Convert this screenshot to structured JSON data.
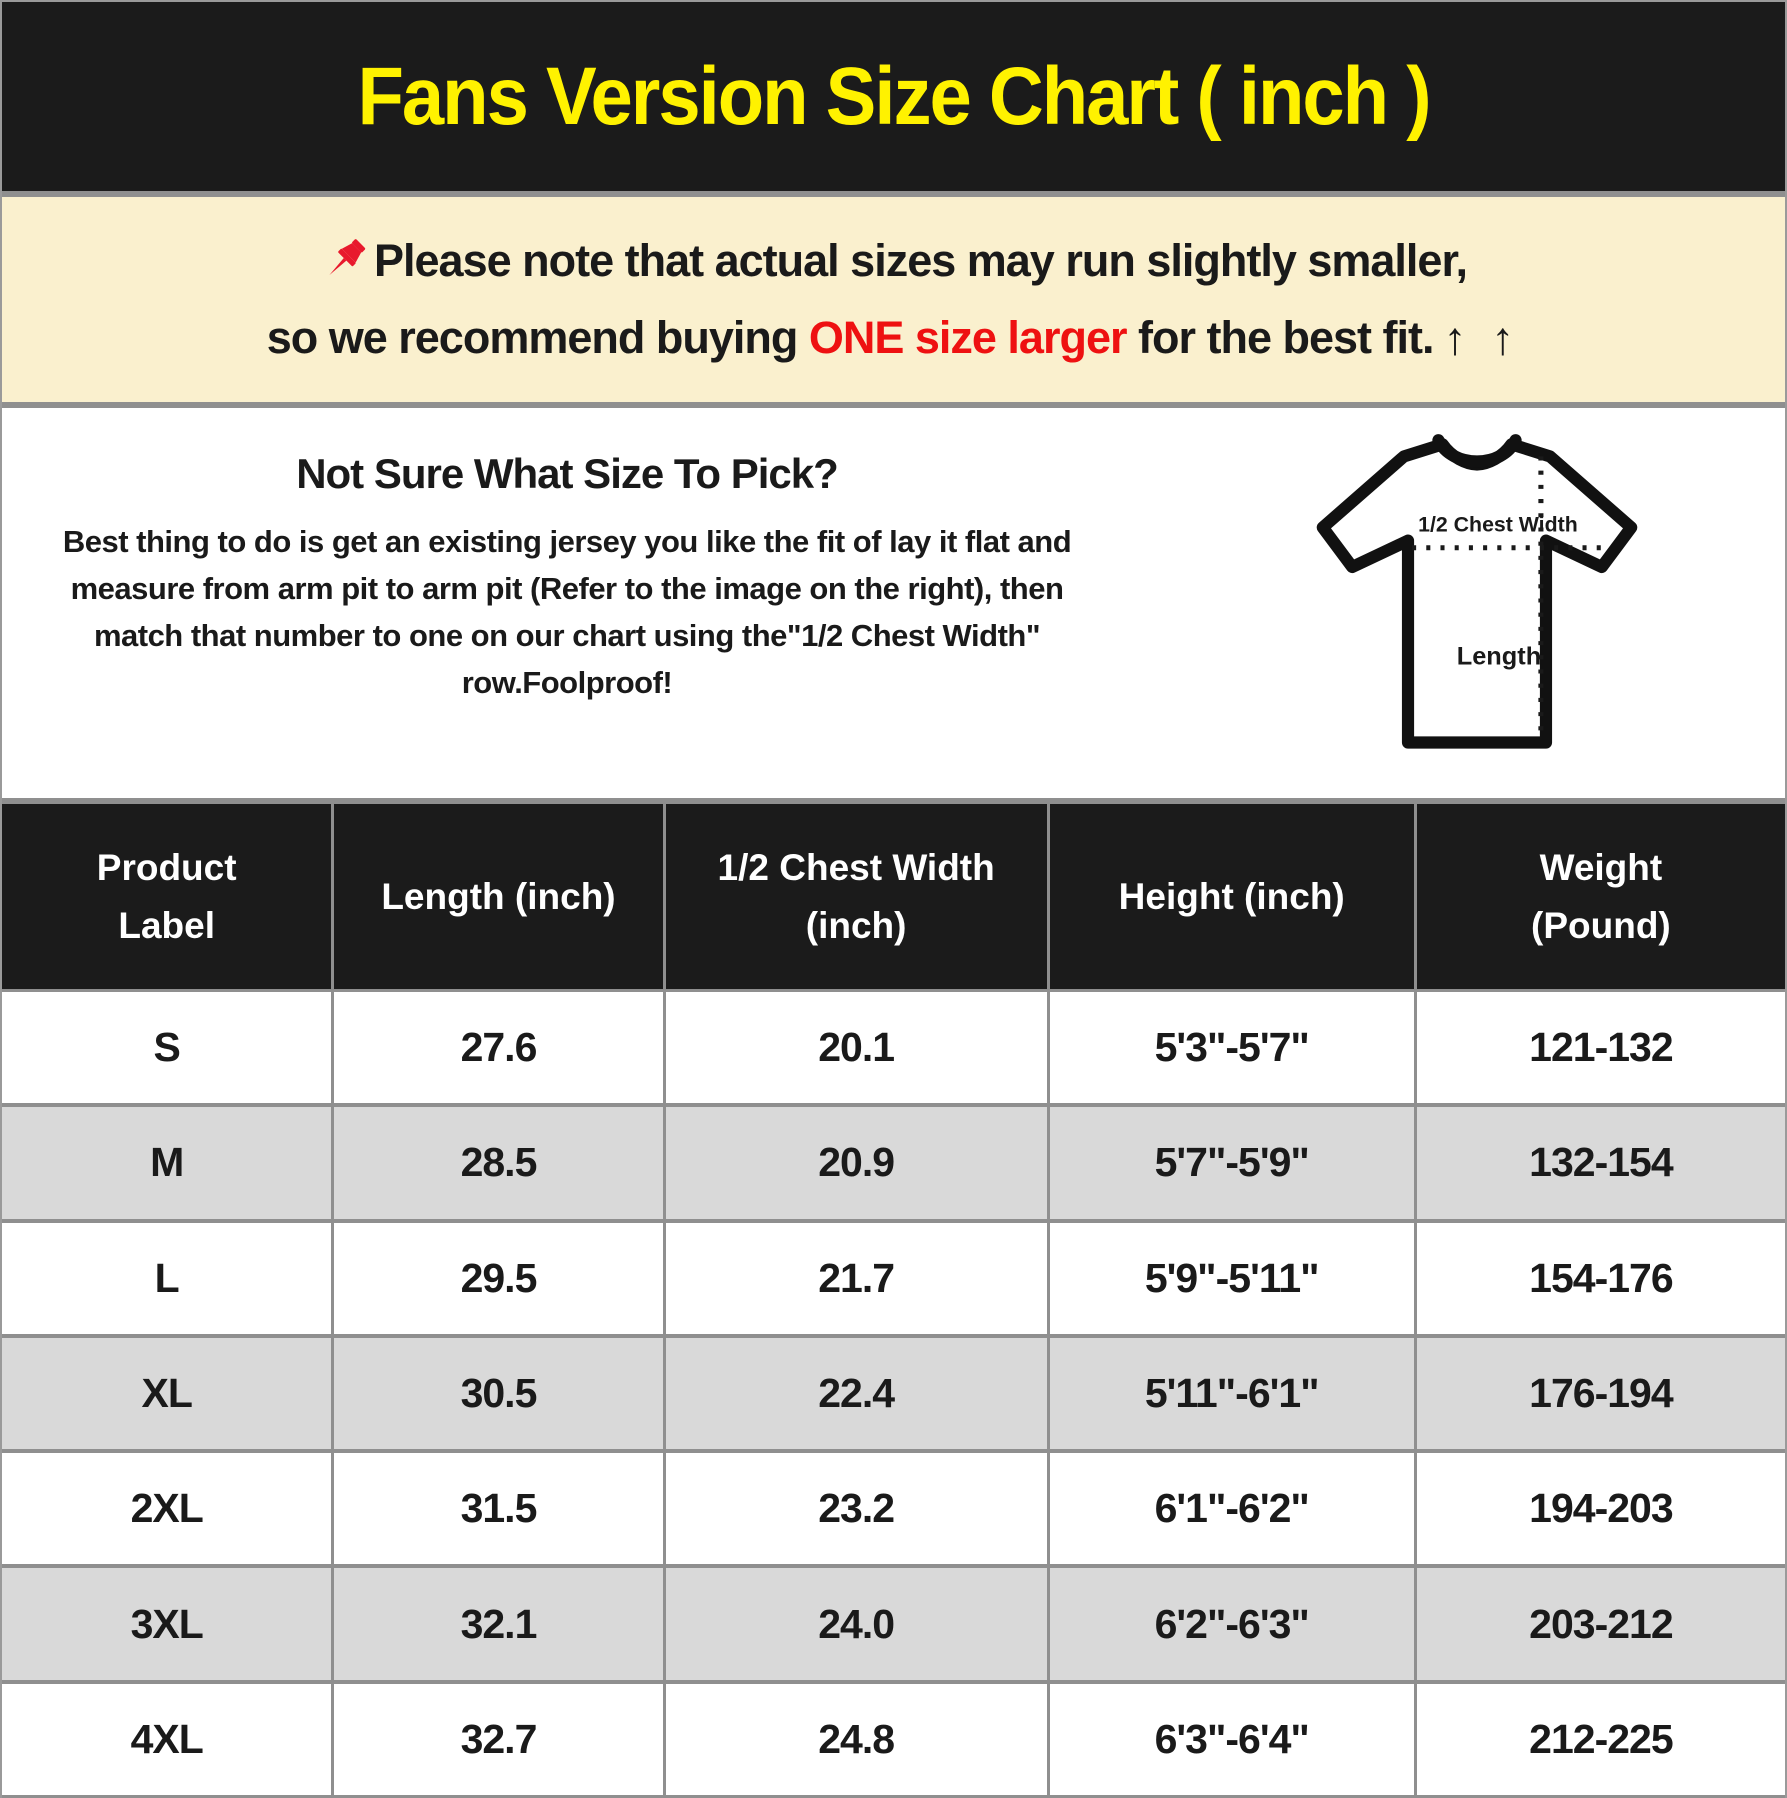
{
  "title": "Fans Version Size Chart ( inch )",
  "banner": {
    "line1": "Please note that actual sizes may run slightly smaller,",
    "line2_before": "so we recommend buying ",
    "line2_red": "ONE size larger",
    "line2_after": " for the best fit.",
    "arrows": "↑ ↑"
  },
  "guide": {
    "heading": "Not Sure What Size To Pick?",
    "lines": [
      "Best thing to do is get an existing jersey you like the fit of lay it flat and",
      "measure from arm pit to arm pit (Refer to the image on the right), then",
      "match that number to one on our chart using the\"1/2 Chest Width\"",
      "row.Foolproof!"
    ],
    "diagram": {
      "chest_label": "1/2 Chest Width",
      "length_label": "Length"
    }
  },
  "chart_data": {
    "type": "table",
    "title": "Fans Version Size Chart ( inch )",
    "columns": [
      "Product Label",
      "Length (inch)",
      "1/2 Chest Width (inch)",
      "Height (inch)",
      "Weight (Pound)"
    ],
    "rows": [
      [
        "S",
        "27.6",
        "20.1",
        "5'3\"-5'7\"",
        "121-132"
      ],
      [
        "M",
        "28.5",
        "20.9",
        "5'7\"-5'9\"",
        "132-154"
      ],
      [
        "L",
        "29.5",
        "21.7",
        "5'9\"-5'11\"",
        "154-176"
      ],
      [
        "XL",
        "30.5",
        "22.4",
        "5'11\"-6'1\"",
        "176-194"
      ],
      [
        "2XL",
        "31.5",
        "23.2",
        "6'1\"-6'2\"",
        "194-203"
      ],
      [
        "3XL",
        "32.1",
        "24.0",
        "6'2\"-6'3\"",
        "203-212"
      ],
      [
        "4XL",
        "32.7",
        "24.8",
        "6'3\"-6'4\"",
        "212-225"
      ]
    ]
  },
  "colors": {
    "title_text": "#FFF200",
    "title_bg": "#1B1B1B",
    "banner_bg": "#FAF0CE",
    "highlight_red": "#EE1111",
    "pin_red": "#E8192C",
    "row_alt_bg": "#D9D9D9",
    "grid_line": "#8F8F8F"
  }
}
